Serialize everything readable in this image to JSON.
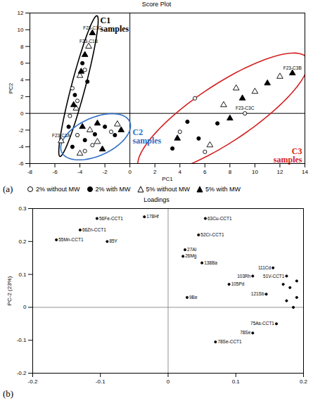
{
  "chart_data": [
    {
      "type": "scatter",
      "title": "Score Plot",
      "panel_label": "(a)",
      "xlabel": "PC1",
      "ylabel": "PC2",
      "xlim": [
        -8,
        14
      ],
      "xticks": [
        -8,
        -6,
        -4,
        -2,
        0,
        2,
        4,
        6,
        8,
        10,
        12,
        14
      ],
      "ylim": [
        -6,
        12
      ],
      "yticks": [
        -6,
        -4,
        -2,
        0,
        2,
        4,
        6,
        8,
        10,
        12
      ],
      "groups": [
        {
          "id": "C1",
          "label": "C1 samples",
          "color": "#000000"
        },
        {
          "id": "C2",
          "label": "C2 samples",
          "color": "#2f6fc6"
        },
        {
          "id": "C3",
          "label": "C3 samples",
          "color": "#d42020"
        }
      ],
      "series": [
        {
          "name": "2% without MW",
          "color": "#000000",
          "marker": "circle-open",
          "x": [
            -4.6,
            -4.2,
            -4.8,
            -3.6,
            -4.2,
            -3.0,
            -1.5,
            -3.6,
            9.2,
            4.0,
            6.0,
            5.2
          ],
          "y": [
            3.0,
            1.5,
            -0.3,
            5.2,
            -2.6,
            -3.8,
            -2.2,
            -4.5,
            0.0,
            -2.2,
            -4.6,
            1.8
          ],
          "group": [
            "C1",
            "C1",
            "C1",
            "C1",
            "C2",
            "C2",
            "C2",
            "C2",
            "C3",
            "C3",
            "C3",
            "C3"
          ],
          "point_labels": [
            null,
            null,
            null,
            null,
            null,
            null,
            null,
            null,
            "F23-C3C",
            null,
            null,
            null
          ]
        },
        {
          "name": "2% with MW",
          "color": "#000000",
          "marker": "circle",
          "x": [
            -4.4,
            -3.8,
            -4.9,
            -3.4,
            -3.6,
            -2.0,
            -1.2,
            -2.8,
            -4.6,
            3.4,
            5.5,
            7.0,
            4.6
          ],
          "y": [
            2.2,
            6.0,
            -1.6,
            3.8,
            -3.2,
            -1.6,
            -2.6,
            -2.5,
            -4.0,
            -4.2,
            -3.0,
            -1.2,
            -1.0
          ],
          "group": [
            "C1",
            "C1",
            "C1",
            "C1",
            "C2",
            "C2",
            "C2",
            "C2",
            "C2",
            "C3",
            "C3",
            "C3",
            "C3"
          ],
          "point_labels": [
            null,
            null,
            null,
            null,
            null,
            null,
            null,
            null,
            null,
            null,
            null,
            null,
            null
          ]
        },
        {
          "name": "5% without MW",
          "color": "#000000",
          "marker": "triangle-open",
          "x": [
            -3.3,
            -4.0,
            -4.3,
            -5.5,
            -3.2,
            -1.0,
            -2.6,
            -4.0,
            12.0,
            10.0,
            7.5,
            8.5,
            6.4
          ],
          "y": [
            8.0,
            4.5,
            0.6,
            -3.3,
            -2.0,
            -1.3,
            -3.4,
            -4.8,
            4.4,
            2.6,
            1.0,
            3.0,
            -3.8
          ],
          "group": [
            "C1",
            "C1",
            "C1",
            "C1",
            "C2",
            "C2",
            "C2",
            "C2",
            "C3",
            "C3",
            "C3",
            "C3",
            "C3"
          ],
          "point_labels": [
            "F23-C1B",
            null,
            null,
            "F23-C1A",
            null,
            null,
            null,
            null,
            null,
            null,
            null,
            null,
            null
          ]
        },
        {
          "name": "5% with MW",
          "color": "#000000",
          "marker": "triangle",
          "x": [
            -3.0,
            -3.6,
            -3.9,
            -4.5,
            -2.6,
            -0.7,
            -3.8,
            -2.2,
            13.0,
            11.0,
            9.0,
            8.0,
            3.8
          ],
          "y": [
            9.6,
            7.0,
            5.0,
            1.0,
            -1.2,
            -2.0,
            -1.6,
            -4.3,
            4.8,
            3.6,
            1.8,
            -0.6,
            -3.0
          ],
          "group": [
            "C1",
            "C1",
            "C1",
            "C1",
            "C2",
            "C2",
            "C2",
            "C2",
            "C3",
            "C3",
            "C3",
            "C3",
            "C3"
          ],
          "point_labels": [
            "F23-C1C",
            null,
            null,
            null,
            null,
            null,
            null,
            null,
            "F23-C3B",
            null,
            null,
            null,
            null
          ]
        }
      ]
    },
    {
      "type": "scatter",
      "title": "Loadings",
      "panel_label": "(b)",
      "ylabel": "PC-2 (23%)",
      "xlim": [
        -0.2,
        0.2
      ],
      "xticks": [
        -0.2,
        -0.1,
        0,
        0.1,
        0.2
      ],
      "ylim": [
        -0.2,
        0.3
      ],
      "yticks": [
        -0.2,
        -0.1,
        0,
        0.1,
        0.2,
        0.3
      ],
      "series": [
        {
          "color": "#000000",
          "marker": "circle",
          "x": [
            -0.165,
            -0.13,
            -0.105,
            -0.09,
            -0.035,
            0.055,
            0.045,
            0.025,
            0.022,
            0.05,
            0.09,
            0.028,
            0.155,
            0.125,
            0.175,
            0.145,
            0.16,
            0.125,
            0.07,
            0.18,
            0.19,
            0.185,
            0.17,
            0.19,
            0.175
          ],
          "y": [
            0.205,
            0.235,
            0.27,
            0.2,
            0.275,
            0.27,
            0.22,
            0.175,
            0.155,
            0.135,
            0.07,
            0.03,
            0.12,
            0.095,
            0.095,
            0.04,
            -0.05,
            -0.078,
            -0.105,
            0.06,
            0.03,
            0.0,
            0.07,
            0.08,
            0.02
          ],
          "point_labels": [
            "55Mn-CCT1",
            "66Zn-CCT1",
            "56Fe-CCT1",
            "85Y",
            "178Hf",
            "63Cu-CCT1",
            "52Cr-CCT1",
            "27Al",
            "26Mg",
            "138Ba",
            "105Pd",
            "9Be",
            "111Cd",
            "103Rh",
            "51V-CCT1",
            "121Sb",
            "75As-CCT1",
            "78Se",
            "78Se-CCT1",
            null,
            null,
            null,
            null,
            null,
            null
          ]
        }
      ]
    }
  ]
}
